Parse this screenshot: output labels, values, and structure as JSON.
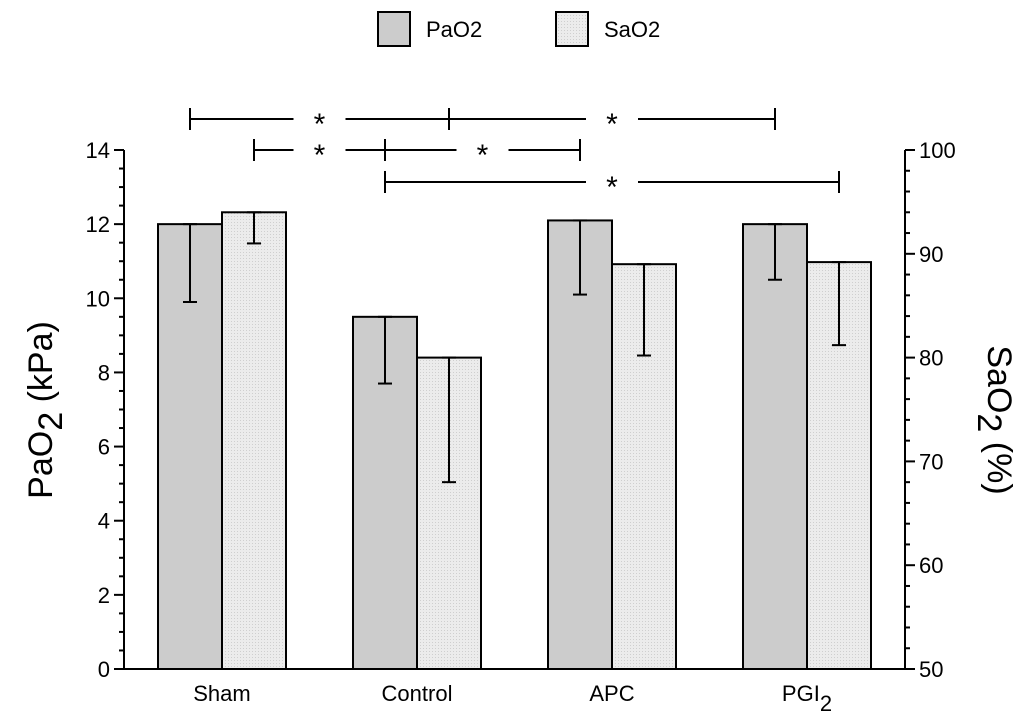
{
  "chart_data": {
    "type": "bar",
    "categories": [
      "Sham",
      "Control",
      "APC",
      "PGI2"
    ],
    "category_labels": [
      {
        "base": "Sham",
        "sub": ""
      },
      {
        "base": "Control",
        "sub": ""
      },
      {
        "base": "APC",
        "sub": ""
      },
      {
        "base": "PGI",
        "sub": "2"
      }
    ],
    "series": [
      {
        "name": "PaO2",
        "axis": "left",
        "color": "#cccccc",
        "values": [
          12.0,
          9.5,
          12.1,
          12.0
        ],
        "error_lower": [
          9.9,
          7.7,
          10.1,
          10.5
        ],
        "error_upper": [
          12.0,
          9.5,
          12.1,
          12.0
        ]
      },
      {
        "name": "SaO2",
        "axis": "right",
        "color": "#e6e6e6",
        "values": [
          94.0,
          80.0,
          89.0,
          89.2
        ],
        "error_lower": [
          91.0,
          68.0,
          80.2,
          81.2
        ],
        "error_upper": [
          94.0,
          80.0,
          89.0,
          89.2
        ]
      }
    ],
    "y_left": {
      "label_base": "PaO",
      "label_sub": "2",
      "label_tail": " (kPa)",
      "min": 0,
      "max": 14,
      "ticks": [
        0,
        2,
        4,
        6,
        8,
        10,
        12,
        14
      ]
    },
    "y_right": {
      "label_base": "SaO",
      "label_sub": "2",
      "label_tail": " (%)",
      "min": 50,
      "max": 100,
      "ticks": [
        50,
        60,
        70,
        80,
        90,
        100
      ]
    },
    "legend": {
      "position": "top"
    },
    "grid": false,
    "significance": [
      {
        "from": "Sham:PaO2",
        "to": "Control:SaO2",
        "label": "*",
        "level": 1
      },
      {
        "from": "Control:SaO2",
        "to": "PGI2:PaO2",
        "label": "*",
        "level": 1
      },
      {
        "from": "Sham:SaO2",
        "to": "Control:PaO2",
        "label": "*",
        "level": 2
      },
      {
        "from": "Control:PaO2",
        "to": "APC:PaO2",
        "label": "*",
        "level": 2
      },
      {
        "from": "Control:PaO2",
        "to": "PGI2:SaO2",
        "label": "*",
        "level": 3
      }
    ]
  }
}
